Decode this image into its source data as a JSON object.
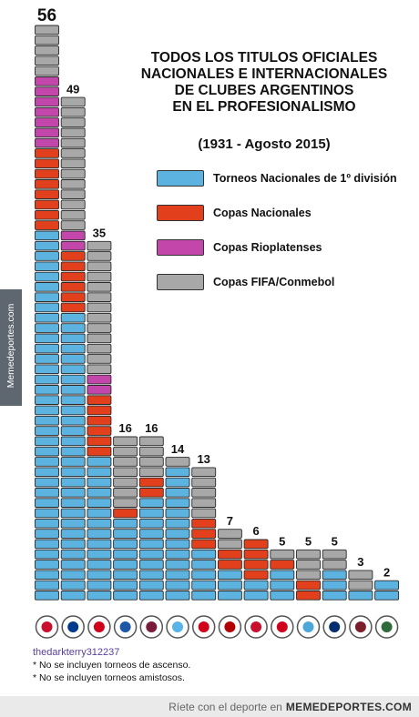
{
  "title_lines": [
    "TODOS LOS TITULOS OFICIALES",
    "NACIONALES E INTERNACIONALES",
    "DE CLUBES ARGENTINOS",
    "EN EL PROFESIONALISMO"
  ],
  "period": "(1931 - Agosto 2015)",
  "legend": [
    {
      "label": "Torneos Nacionales de 1º división",
      "color": "#5db3e0"
    },
    {
      "label": "Copas Nacionales",
      "color": "#e2401c"
    },
    {
      "label": "Copas Rioplatenses",
      "color": "#c346aa"
    },
    {
      "label": "Copas FIFA/Conmebol",
      "color": "#a8a8a8"
    }
  ],
  "side_label": "Memedeportes.com",
  "credit": "thedarkterry312237",
  "notes": [
    "* No se incluyen torneos de ascenso.",
    "* No se incluyen torneos amistosos."
  ],
  "footer": {
    "text": "Ríete con el deporte en",
    "brand": "MEMEDEPORTES.COM"
  },
  "chart_data": {
    "type": "bar",
    "stacked": true,
    "categories": [
      "River Plate",
      "Boca Juniors",
      "Independiente",
      "Vélez Sarsfield",
      "San Lorenzo",
      "Racing Club",
      "Estudiantes",
      "Newell's Old Boys",
      "Huracán",
      "Argentinos Juniors",
      "Arsenal",
      "Rosario Central",
      "Lanús",
      "Banfield"
    ],
    "totals": [
      56,
      49,
      35,
      16,
      16,
      14,
      13,
      7,
      6,
      5,
      5,
      5,
      3,
      2
    ],
    "series": [
      {
        "name": "Torneos Nacionales de 1º división",
        "values": [
          36,
          28,
          14,
          8,
          10,
          13,
          5,
          3,
          2,
          3,
          0,
          3,
          1,
          2
        ]
      },
      {
        "name": "Copas Nacionales",
        "values": [
          8,
          6,
          6,
          1,
          2,
          0,
          3,
          2,
          4,
          1,
          2,
          0,
          0,
          0
        ]
      },
      {
        "name": "Copas Rioplatenses",
        "values": [
          7,
          2,
          2,
          0,
          0,
          0,
          0,
          0,
          0,
          0,
          0,
          0,
          0,
          0
        ]
      },
      {
        "name": "Copas FIFA/Conmebol",
        "values": [
          5,
          13,
          13,
          7,
          4,
          1,
          5,
          2,
          0,
          1,
          3,
          2,
          2,
          0
        ]
      }
    ]
  }
}
